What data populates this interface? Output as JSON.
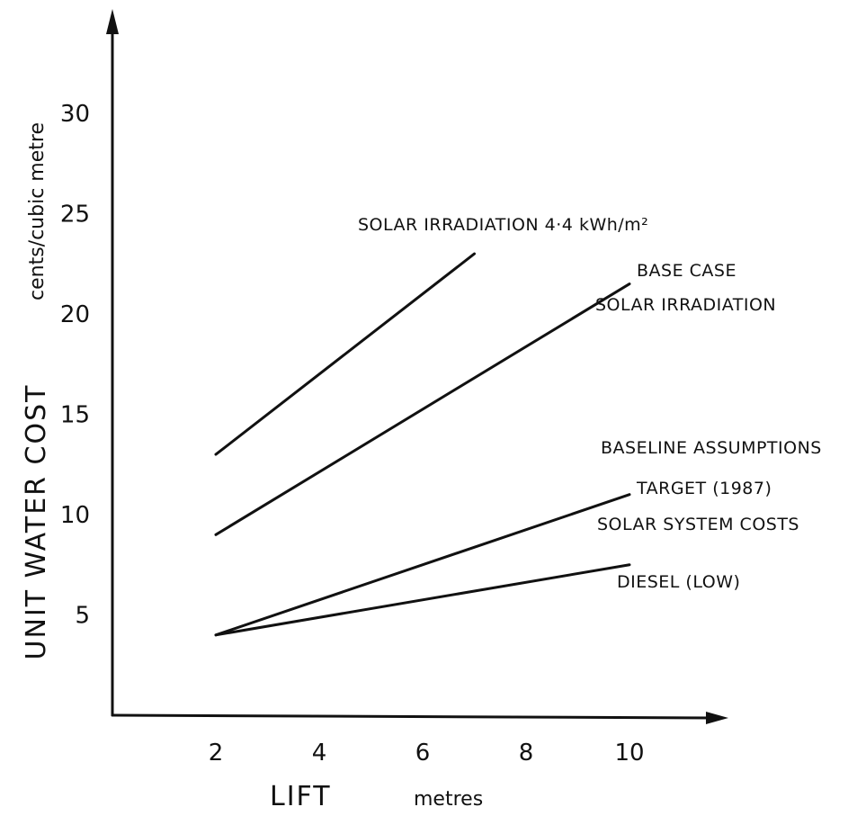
{
  "chart_data": {
    "type": "line",
    "xlabel": "LIFT",
    "xunit": "metres",
    "ylabel": "UNIT WATER COST",
    "yunit": "cents/cubic metre",
    "x_ticks": [
      "2",
      "4",
      "6",
      "8",
      "10"
    ],
    "y_ticks": [
      "5",
      "10",
      "15",
      "20",
      "25",
      "30"
    ],
    "xlim": [
      0,
      12
    ],
    "ylim": [
      0,
      34
    ],
    "grid": false,
    "series": [
      {
        "x": [
          2,
          7
        ],
        "values": [
          13,
          23
        ]
      },
      {
        "x": [
          2,
          10
        ],
        "values": [
          9,
          21.5
        ]
      },
      {
        "x": [
          2,
          10
        ],
        "values": [
          4,
          11
        ]
      },
      {
        "x": [
          2,
          10
        ],
        "values": [
          4,
          7.5
        ]
      }
    ],
    "annotations": [
      {
        "text": "SOLAR IRRADIATION 4·4 kWh/m²"
      },
      {
        "text": "BASE CASE"
      },
      {
        "text": "SOLAR IRRADIATION"
      },
      {
        "text": "BASELINE ASSUMPTIONS"
      },
      {
        "text": "TARGET (1987)"
      },
      {
        "text": "SOLAR SYSTEM COSTS"
      },
      {
        "text": "DIESEL (LOW)"
      }
    ]
  }
}
